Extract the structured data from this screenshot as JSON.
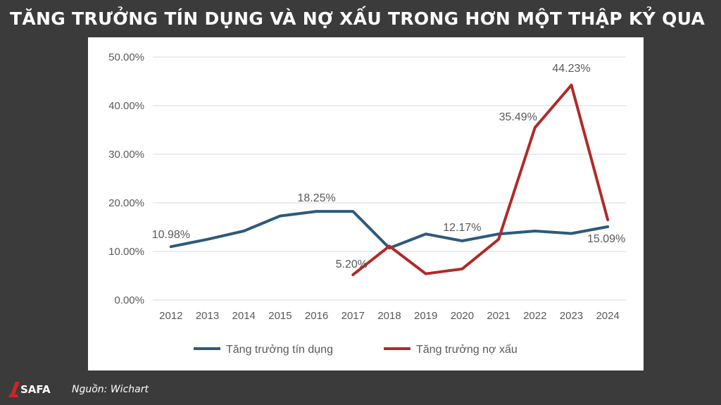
{
  "header": {
    "title": "TĂNG TRƯỞNG TÍN DỤNG VÀ NỢ XẤU TRONG HƠN MỘT THẬP KỶ QUA"
  },
  "footer": {
    "logo_text": "SAFA",
    "source": "Nguồn: Wichart"
  },
  "colors": {
    "credit": "#2e5a7a",
    "npl": "#b02a2a",
    "axis_text": "#595959",
    "grid": "#d9d9d9"
  },
  "chart_data": {
    "type": "line",
    "title": "",
    "xlabel": "",
    "ylabel": "",
    "x": [
      "2012",
      "2013",
      "2014",
      "2015",
      "2016",
      "2017",
      "2018",
      "2019",
      "2020",
      "2021",
      "2022",
      "2023",
      "2024"
    ],
    "ylim": [
      0,
      50
    ],
    "yticks": [
      "0.00%",
      "10.00%",
      "20.00%",
      "30.00%",
      "40.00%",
      "50.00%"
    ],
    "grid": true,
    "legend": "bottom",
    "series": [
      {
        "name": "Tăng trưởng tín dụng",
        "color": "#2e5a7a",
        "values": [
          10.98,
          12.5,
          14.2,
          17.3,
          18.25,
          18.25,
          10.7,
          13.6,
          12.17,
          13.6,
          14.2,
          13.7,
          15.09
        ]
      },
      {
        "name": "Tăng trưởng nợ xấu",
        "color": "#b02a2a",
        "values": [
          null,
          null,
          null,
          null,
          null,
          5.2,
          11.1,
          5.4,
          6.4,
          12.5,
          35.49,
          44.23,
          16.5
        ]
      }
    ],
    "annotations": [
      {
        "text": "10.98%",
        "x": "2012",
        "y": 10.98
      },
      {
        "text": "18.25%",
        "x": "2016",
        "y": 18.25
      },
      {
        "text": "5.20%",
        "x": "2017",
        "y": 5.2
      },
      {
        "text": "12.17%",
        "x": "2020",
        "y": 12.17
      },
      {
        "text": "35.49%",
        "x": "2022",
        "y": 35.49
      },
      {
        "text": "44.23%",
        "x": "2023",
        "y": 44.23
      },
      {
        "text": "15.09%",
        "x": "2024",
        "y": 15.09
      }
    ]
  }
}
